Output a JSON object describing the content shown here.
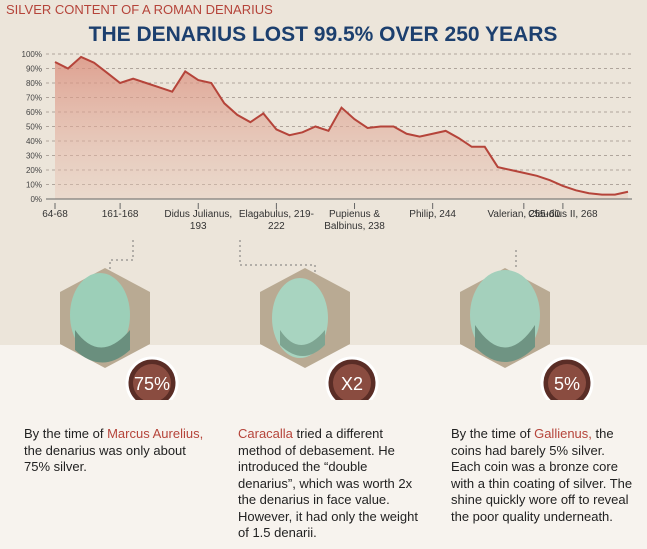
{
  "chart_data": {
    "type": "area",
    "subtitle": "SILVER CONTENT OF A ROMAN DENARIUS",
    "title": "THE DENARIUS LOST 99.5% OVER 250 YEARS",
    "categories": [
      "64-68",
      null,
      null,
      null,
      null,
      "161-168",
      null,
      null,
      null,
      null,
      null,
      "Didus Julianus, 193",
      null,
      null,
      null,
      null,
      null,
      "Elagabulus, 219-222",
      null,
      null,
      null,
      null,
      null,
      "Pupienus & Balbinus, 238",
      null,
      null,
      null,
      null,
      null,
      "Philip, 244",
      null,
      null,
      null,
      null,
      null,
      null,
      "Valerian, 255-60",
      null,
      null,
      "Claudius II, 268",
      null,
      null,
      null,
      null,
      null
    ],
    "values": [
      94.5,
      90,
      98,
      94,
      87,
      80,
      83,
      80,
      77,
      74,
      88,
      82,
      80,
      66,
      58,
      53,
      59,
      48,
      44,
      46,
      50,
      47,
      63,
      55,
      49,
      50,
      50,
      45,
      43,
      45,
      47,
      42,
      36,
      36,
      22,
      20,
      18,
      16,
      13,
      9,
      6,
      4,
      3,
      3,
      5
    ],
    "color": "#b5443a",
    "ylim": [
      0,
      100
    ],
    "yticks": [
      {
        "value": 0,
        "label": "0%"
      },
      {
        "value": 10,
        "label": "10%"
      },
      {
        "value": 20,
        "label": "20%"
      },
      {
        "value": 30,
        "label": "30%"
      },
      {
        "value": 40,
        "label": "40%"
      },
      {
        "value": 50,
        "label": "50%"
      },
      {
        "value": 60,
        "label": "60%"
      },
      {
        "value": 70,
        "label": "70%"
      },
      {
        "value": 80,
        "label": "80%"
      },
      {
        "value": 90,
        "label": "90%"
      },
      {
        "value": 100,
        "label": "100%"
      }
    ],
    "grid": true
  },
  "panels": [
    {
      "badge": "75%",
      "pre": "By the time of ",
      "name": "Marcus Aurelius,",
      "post": " the denarius was only about 75% silver."
    },
    {
      "badge": "X2",
      "pre": "",
      "name": "Caracalla",
      "post": " tried a different method of debasement. He introduced the “double denarius”, which was worth 2x the denarius in face value. However, it had only the weight of 1.5 denarii."
    },
    {
      "badge": "5%",
      "pre": "By the time of ",
      "name": "Gallienus,",
      "post": " the coins had barely 5% silver. Each coin was a bronze core with a thin coating of silver. The shine quickly wore off to reveal the poor quality underneath."
    }
  ]
}
